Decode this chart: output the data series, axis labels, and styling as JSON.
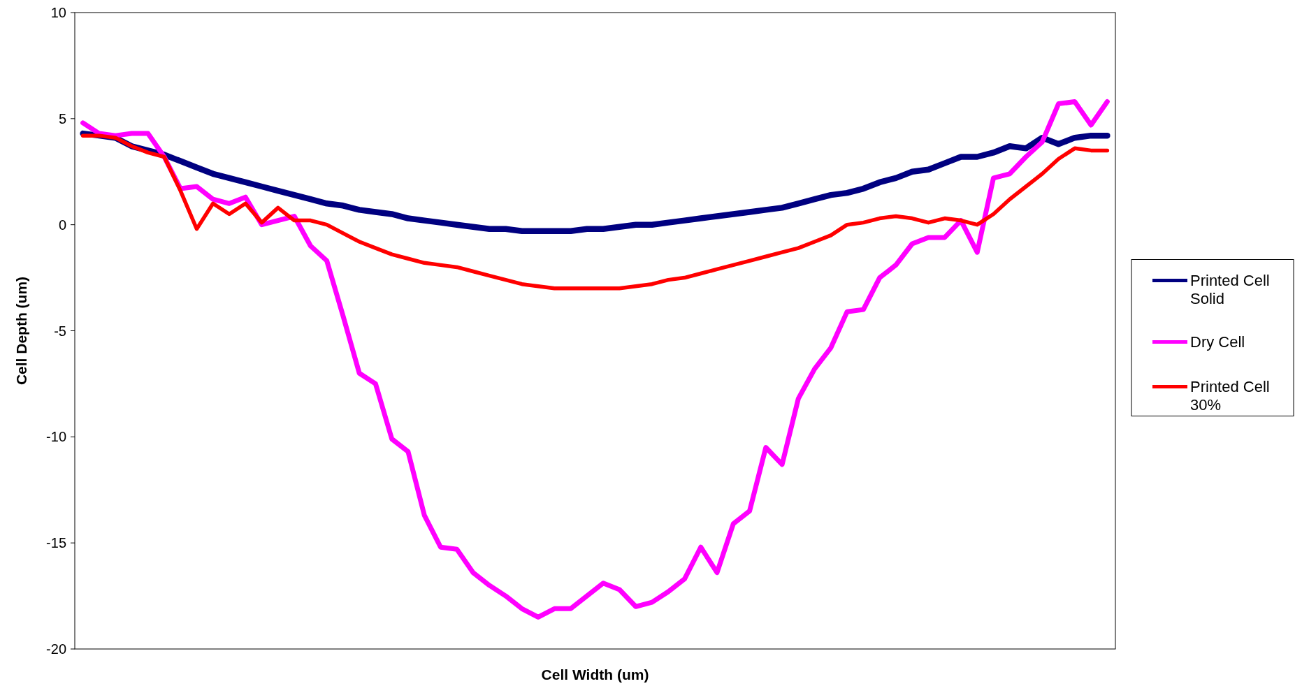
{
  "chart_data": {
    "type": "line",
    "xlabel": "Cell Width (um)",
    "ylabel": "Cell Depth (um)",
    "categories": [
      null,
      null,
      null,
      null,
      null,
      null,
      null,
      null,
      null,
      null,
      null,
      null,
      null,
      null,
      null,
      null,
      null,
      null,
      null,
      null,
      null,
      null,
      null,
      null,
      null,
      null,
      null,
      null,
      null,
      null,
      null,
      null,
      null,
      null,
      null,
      null,
      null,
      null,
      null,
      null,
      null,
      null,
      null,
      null,
      null,
      null,
      null,
      null,
      null,
      null,
      null,
      null,
      null,
      null,
      null,
      null,
      null,
      null,
      null,
      null,
      null,
      null,
      null,
      null
    ],
    "series": [
      {
        "name": "Printed Cell Solid",
        "color": "#000080",
        "values": [
          4.3,
          4.2,
          4.1,
          3.7,
          3.5,
          3.3,
          3.0,
          2.7,
          2.4,
          2.2,
          2.0,
          1.8,
          1.6,
          1.4,
          1.2,
          1.0,
          0.9,
          0.7,
          0.6,
          0.5,
          0.3,
          0.2,
          0.1,
          0,
          -0.1,
          -0.2,
          -0.2,
          -0.3,
          -0.3,
          -0.3,
          -0.3,
          -0.2,
          -0.2,
          -0.1,
          0,
          0,
          0.1,
          0.2,
          0.3,
          0.4,
          0.5,
          0.6,
          0.7,
          0.8,
          1.0,
          1.2,
          1.4,
          1.5,
          1.7,
          2.0,
          2.2,
          2.5,
          2.6,
          2.9,
          3.2,
          3.2,
          3.4,
          3.7,
          3.6,
          4.1,
          3.8,
          4.1,
          4.2,
          4.2
        ]
      },
      {
        "name": "Dry Cell",
        "color": "#ff00ff",
        "values": [
          4.8,
          4.3,
          4.2,
          4.3,
          4.3,
          3.2,
          1.7,
          1.8,
          1.2,
          1.0,
          1.3,
          0,
          0.2,
          0.4,
          -1,
          -1.7,
          -4.3,
          -7,
          -7.5,
          -10.1,
          -10.7,
          -13.7,
          -15.2,
          -15.3,
          -16.4,
          -17,
          -17.5,
          -18.1,
          -18.5,
          -18.1,
          -18.1,
          -17.5,
          -16.9,
          -17.2,
          -18,
          -17.8,
          -17.3,
          -16.7,
          -15.2,
          -16.4,
          -14.1,
          -13.5,
          -10.5,
          -11.3,
          -8.2,
          -6.8,
          -5.8,
          -4.1,
          -4,
          -2.5,
          -1.9,
          -0.9,
          -0.6,
          -0.6,
          0.2,
          -1.3,
          2.2,
          2.4,
          3.2,
          3.9,
          5.7,
          5.8,
          4.7,
          5.8
        ]
      },
      {
        "name": "Printed Cell 30%",
        "color": "#ff0000",
        "values": [
          4.2,
          4.2,
          4.1,
          3.7,
          3.4,
          3.2,
          1.6,
          -0.2,
          1.0,
          0.5,
          1.0,
          0.1,
          0.8,
          0.2,
          0.2,
          0,
          -0.4,
          -0.8,
          -1.1,
          -1.4,
          -1.6,
          -1.8,
          -1.9,
          -2.0,
          -2.2,
          -2.4,
          -2.6,
          -2.8,
          -2.9,
          -3.0,
          -3.0,
          -3.0,
          -3.0,
          -3.0,
          -2.9,
          -2.8,
          -2.6,
          -2.5,
          -2.3,
          -2.1,
          -1.9,
          -1.7,
          -1.5,
          -1.3,
          -1.1,
          -0.8,
          -0.5,
          0,
          0.1,
          0.3,
          0.4,
          0.3,
          0.1,
          0.3,
          0.2,
          0,
          0.5,
          1.2,
          1.8,
          2.4,
          3.1,
          3.6,
          3.5,
          3.5
        ]
      }
    ],
    "ylim": [
      -20,
      10
    ],
    "yticks": [
      -20,
      -15,
      -10,
      -5,
      0,
      5,
      10
    ],
    "grid": false,
    "legend": "right",
    "marker": "none",
    "line_style": "solid"
  }
}
